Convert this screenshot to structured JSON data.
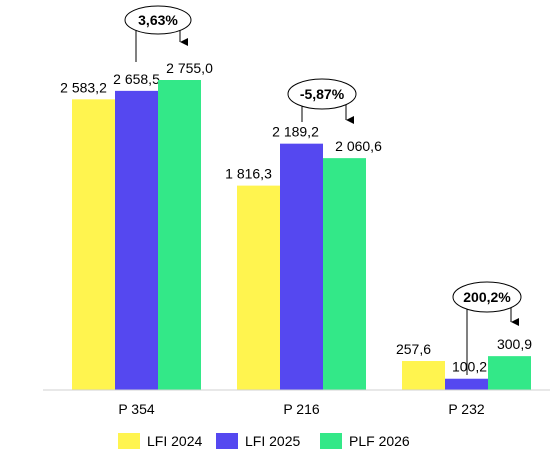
{
  "chart_data": {
    "type": "bar",
    "categories": [
      "P 354",
      "P 216",
      "P 232"
    ],
    "series": [
      {
        "name": "LFI 2024",
        "color": "#FFF44F",
        "values": [
          2583.2,
          1816.3,
          257.6
        ],
        "labels": [
          "2 583,2",
          "1 816,3",
          "257,6"
        ]
      },
      {
        "name": "LFI 2025",
        "color": "#5548F0",
        "values": [
          2658.5,
          2189.2,
          100.2
        ],
        "labels": [
          "2 658,5",
          "2 189,2",
          "100,2"
        ]
      },
      {
        "name": "PLF 2026",
        "color": "#33E888",
        "values": [
          2755.0,
          2060.6,
          300.9
        ],
        "labels": [
          "2 755,0",
          "2 060,6",
          "300,9"
        ]
      }
    ],
    "changes": [
      "3,63%",
      "-5,87%",
      "200,2%"
    ],
    "ylim": [
      0,
      2755
    ],
    "grid": false,
    "legend": "bottom"
  }
}
